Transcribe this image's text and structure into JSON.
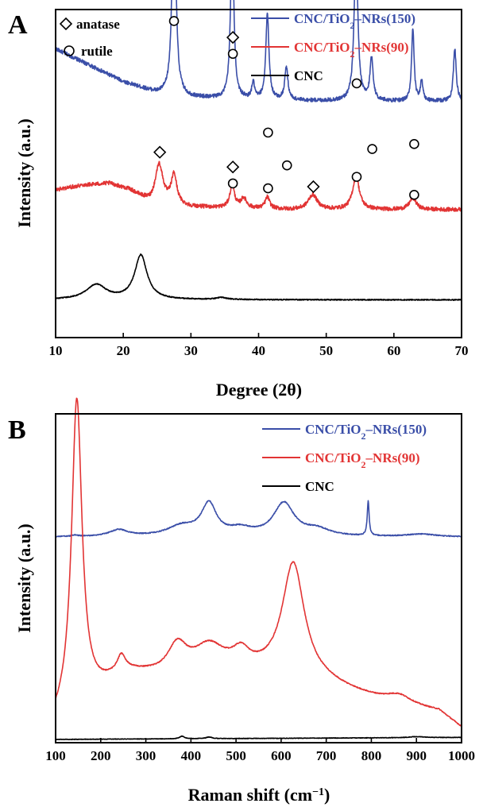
{
  "chart_data": [
    {
      "panel": "A",
      "type": "line",
      "xlabel": "Degree (2θ)",
      "ylabel": "Intensity (a.u.)",
      "xlim": [
        10,
        70
      ],
      "xticks": [
        10,
        20,
        30,
        40,
        50,
        60,
        70
      ],
      "marker_legend": [
        {
          "symbol": "diamond",
          "label": "anatase"
        },
        {
          "symbol": "circle",
          "label": "rutile"
        }
      ],
      "series": [
        {
          "name": "CNC/TiO2–NRs(150)",
          "name_main": "CNC/TiO",
          "name_sub": "2",
          "name_tail": "–NRs(150)",
          "color": "#3a4ea8",
          "baseline": 0.72,
          "noise": 0.006,
          "background": [
            [
              10,
              0.16
            ],
            [
              15,
              0.11
            ],
            [
              20,
              0.06
            ],
            [
              25,
              0.025
            ],
            [
              30,
              0.012
            ],
            [
              40,
              0.004
            ],
            [
              55,
              0.0
            ],
            [
              70,
              0.0
            ]
          ],
          "peaks": [
            {
              "x": 27.5,
              "h": 0.66,
              "w": 0.32
            },
            {
              "x": 36.1,
              "h": 0.52,
              "w": 0.28
            },
            {
              "x": 39.2,
              "h": 0.05,
              "w": 0.25
            },
            {
              "x": 41.3,
              "h": 0.26,
              "w": 0.28
            },
            {
              "x": 44.1,
              "h": 0.1,
              "w": 0.28
            },
            {
              "x": 54.4,
              "h": 0.47,
              "w": 0.32
            },
            {
              "x": 56.7,
              "h": 0.13,
              "w": 0.28
            },
            {
              "x": 62.8,
              "h": 0.22,
              "w": 0.22
            },
            {
              "x": 64.1,
              "h": 0.06,
              "w": 0.22
            },
            {
              "x": 69.0,
              "h": 0.16,
              "w": 0.25
            }
          ]
        },
        {
          "name": "CNC/TiO2–NRs(90)",
          "name_main": "CNC/TiO",
          "name_sub": "2",
          "name_tail": "–NRs(90)",
          "color": "#e23434",
          "baseline": 0.39,
          "noise": 0.006,
          "background": [
            [
              10,
              0.06
            ],
            [
              14,
              0.075
            ],
            [
              18,
              0.08
            ],
            [
              21,
              0.06
            ],
            [
              24,
              0.02
            ],
            [
              30,
              0.008
            ],
            [
              45,
              0.0
            ],
            [
              70,
              0.0
            ]
          ],
          "peaks": [
            {
              "x": 25.3,
              "h": 0.12,
              "w": 0.7
            },
            {
              "x": 27.5,
              "h": 0.09,
              "w": 0.5
            },
            {
              "x": 36.1,
              "h": 0.07,
              "w": 0.4
            },
            {
              "x": 37.8,
              "h": 0.03,
              "w": 0.5
            },
            {
              "x": 41.3,
              "h": 0.035,
              "w": 0.4
            },
            {
              "x": 48.0,
              "h": 0.045,
              "w": 0.8
            },
            {
              "x": 54.4,
              "h": 0.1,
              "w": 0.6
            },
            {
              "x": 62.8,
              "h": 0.035,
              "w": 0.6
            }
          ]
        },
        {
          "name": "CNC",
          "name_main": "CNC",
          "name_sub": "",
          "name_tail": "",
          "color": "#000000",
          "baseline": 0.115,
          "noise": 0.0015,
          "background": [
            [
              10,
              0.0
            ],
            [
              70,
              0.0
            ]
          ],
          "peaks": [
            {
              "x": 16.0,
              "h": 0.045,
              "w": 1.8
            },
            {
              "x": 22.6,
              "h": 0.135,
              "w": 1.1
            },
            {
              "x": 34.5,
              "h": 0.006,
              "w": 1.0
            }
          ]
        }
      ],
      "annotations": [
        {
          "symbol": "circle",
          "x": 27.5,
          "y": 0.965
        },
        {
          "symbol": "diamond",
          "x": 36.2,
          "y": 0.915
        },
        {
          "symbol": "circle",
          "x": 36.2,
          "y": 0.865
        },
        {
          "symbol": "circle",
          "x": 41.4,
          "y": 0.625
        },
        {
          "symbol": "circle",
          "x": 44.2,
          "y": 0.525
        },
        {
          "symbol": "circle",
          "x": 54.5,
          "y": 0.775
        },
        {
          "symbol": "circle",
          "x": 56.8,
          "y": 0.575
        },
        {
          "symbol": "circle",
          "x": 63.0,
          "y": 0.59
        },
        {
          "symbol": "diamond",
          "x": 25.4,
          "y": 0.565
        },
        {
          "symbol": "diamond",
          "x": 36.2,
          "y": 0.52
        },
        {
          "symbol": "circle",
          "x": 36.2,
          "y": 0.47
        },
        {
          "symbol": "circle",
          "x": 41.4,
          "y": 0.455
        },
        {
          "symbol": "diamond",
          "x": 48.1,
          "y": 0.46
        },
        {
          "symbol": "circle",
          "x": 54.5,
          "y": 0.49
        },
        {
          "symbol": "circle",
          "x": 63.0,
          "y": 0.435
        }
      ]
    },
    {
      "panel": "B",
      "type": "line",
      "xlabel": "Raman shift (cm−1)",
      "xlabel_main": "Raman shift (cm",
      "xlabel_sup": "−1",
      "xlabel_tail": ")",
      "ylabel": "Intensity (a.u.)",
      "xlim": [
        100,
        1000
      ],
      "xticks": [
        100,
        200,
        300,
        400,
        500,
        600,
        700,
        800,
        900,
        1000
      ],
      "series": [
        {
          "name": "CNC/TiO2–NRs(150)",
          "name_main": "CNC/TiO",
          "name_sub": "2",
          "name_tail": "–NRs(150)",
          "color": "#3a4ea8",
          "baseline": 0.625,
          "noise": 0.0015,
          "background": [
            [
              100,
              0.0
            ],
            [
              1000,
              0.0
            ]
          ],
          "peaks": [
            {
              "x": 143,
              "h": 0.004,
              "w": 8
            },
            {
              "x": 240,
              "h": 0.02,
              "w": 25
            },
            {
              "x": 380,
              "h": 0.03,
              "w": 40
            },
            {
              "x": 440,
              "h": 0.095,
              "w": 20
            },
            {
              "x": 510,
              "h": 0.02,
              "w": 30
            },
            {
              "x": 606,
              "h": 0.1,
              "w": 28
            },
            {
              "x": 680,
              "h": 0.02,
              "w": 35
            },
            {
              "x": 793,
              "h": 0.105,
              "w": 2.5
            },
            {
              "x": 910,
              "h": 0.008,
              "w": 40
            }
          ]
        },
        {
          "name": "CNC/TiO2–NRs(90)",
          "name_main": "CNC/TiO",
          "name_sub": "2",
          "name_tail": "–NRs(90)",
          "color": "#e23434",
          "baseline": 0.045,
          "noise": 0.0015,
          "background": [
            [
              100,
              0.01
            ],
            [
              250,
              0.165
            ],
            [
              330,
              0.16
            ],
            [
              500,
              0.18
            ],
            [
              700,
              0.13
            ],
            [
              850,
              0.07
            ],
            [
              950,
              0.05
            ],
            [
              1000,
              0.0
            ]
          ],
          "peaks": [
            {
              "x": 147,
              "h": 0.94,
              "w": 14
            },
            {
              "x": 245,
              "h": 0.04,
              "w": 10
            },
            {
              "x": 370,
              "h": 0.08,
              "w": 25
            },
            {
              "x": 440,
              "h": 0.07,
              "w": 40
            },
            {
              "x": 512,
              "h": 0.04,
              "w": 20
            },
            {
              "x": 627,
              "h": 0.35,
              "w": 30
            },
            {
              "x": 860,
              "h": 0.03,
              "w": 35
            }
          ]
        },
        {
          "name": "CNC",
          "name_main": "CNC",
          "name_sub": "",
          "name_tail": "",
          "color": "#000000",
          "baseline": 0.01,
          "noise": 0.0008,
          "background": [
            [
              100,
              0.0
            ],
            [
              1000,
              0.006
            ]
          ],
          "peaks": [
            {
              "x": 380,
              "h": 0.008,
              "w": 6
            },
            {
              "x": 440,
              "h": 0.005,
              "w": 8
            },
            {
              "x": 900,
              "h": 0.003,
              "w": 20
            }
          ]
        }
      ]
    }
  ]
}
